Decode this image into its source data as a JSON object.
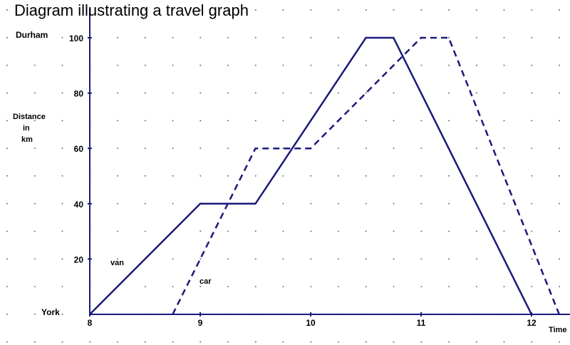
{
  "chart_data": {
    "type": "line",
    "title": "Diagram illustrating a travel graph",
    "xlabel": "Time",
    "ylabel": "Distance in km",
    "ylabel_lines": [
      "Distance",
      "in",
      "km"
    ],
    "xlim": [
      8,
      12.35
    ],
    "ylim": [
      0,
      110
    ],
    "x_ticks": [
      8,
      9,
      10,
      11,
      12
    ],
    "y_ticks": [
      20,
      40,
      60,
      80,
      100
    ],
    "place_labels": [
      {
        "name": "Durham",
        "y": 100
      },
      {
        "name": "York",
        "y": 0
      }
    ],
    "grid": "dotted",
    "series": [
      {
        "name": "van",
        "style": "solid",
        "color": "#1a1a7a",
        "points": [
          [
            8,
            0
          ],
          [
            9,
            40
          ],
          [
            9.5,
            40
          ],
          [
            10.5,
            100
          ],
          [
            10.75,
            100
          ],
          [
            12,
            0
          ]
        ]
      },
      {
        "name": "car",
        "style": "dashed",
        "color": "#1a1a7a",
        "points": [
          [
            8.75,
            0
          ],
          [
            9.5,
            60
          ],
          [
            10,
            60
          ],
          [
            11,
            100
          ],
          [
            11.25,
            100
          ],
          [
            12.25,
            0
          ]
        ]
      }
    ]
  }
}
